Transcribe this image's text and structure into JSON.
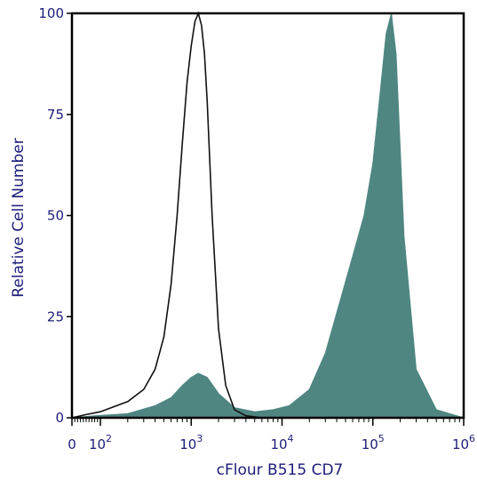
{
  "chart_data": {
    "type": "area",
    "xlabel": "cFlour B515 CD7",
    "ylabel": "Relative Cell Number",
    "x_scale": "log (linear near 0)",
    "xlim": [
      0,
      1000000
    ],
    "ylim": [
      0,
      100
    ],
    "y_ticks": [
      "0",
      "25",
      "50",
      "75",
      "100"
    ],
    "x_ticks": [
      {
        "value": 0,
        "base": "0",
        "exp": ""
      },
      {
        "value": 100,
        "base": "10",
        "exp": "2"
      },
      {
        "value": 1000,
        "base": "10",
        "exp": "3"
      },
      {
        "value": 10000,
        "base": "10",
        "exp": "4"
      },
      {
        "value": 100000,
        "base": "10",
        "exp": "5"
      },
      {
        "value": 1000000,
        "base": "10",
        "exp": "6"
      }
    ],
    "grid": false,
    "series": [
      {
        "style": "filled",
        "color": "#4f8682",
        "x": [
          0,
          80,
          200,
          400,
          600,
          800,
          1000,
          1200,
          1500,
          2000,
          3000,
          5000,
          8000,
          12000,
          20000,
          30000,
          45000,
          60000,
          80000,
          100000,
          120000,
          140000,
          160000,
          180000,
          220000,
          300000,
          500000,
          1000000
        ],
        "y": [
          0,
          0.5,
          1,
          3,
          5,
          8,
          10,
          11,
          10,
          6,
          2.5,
          1.5,
          2,
          3,
          7,
          16,
          30,
          40,
          50,
          63,
          80,
          95,
          100,
          90,
          45,
          12,
          2,
          0
        ]
      },
      {
        "style": "outline",
        "color": "#111111",
        "x": [
          0,
          50,
          100,
          200,
          300,
          400,
          500,
          600,
          700,
          800,
          900,
          1000,
          1100,
          1200,
          1300,
          1400,
          1500,
          1700,
          2000,
          2400,
          3000,
          4000,
          6000,
          10000
        ],
        "y": [
          0,
          0.8,
          1.5,
          4,
          7,
          12,
          20,
          33,
          50,
          68,
          83,
          92,
          98,
          100,
          97,
          90,
          78,
          50,
          22,
          8,
          2,
          0.5,
          0,
          0
        ]
      }
    ]
  }
}
